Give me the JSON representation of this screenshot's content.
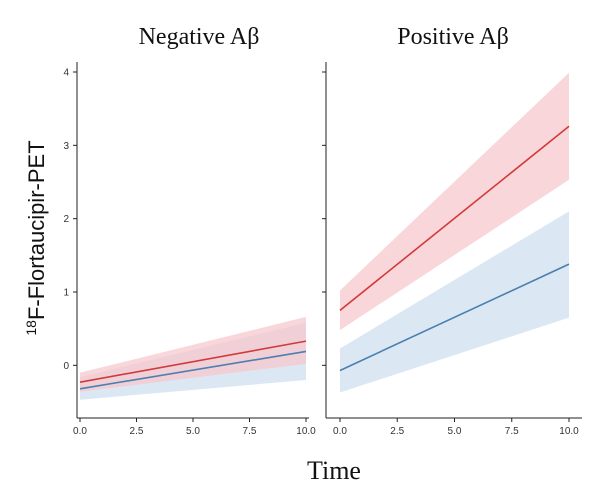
{
  "chart_data": {
    "type": "line",
    "ylabel_sup": "18",
    "ylabel_main": "F-Flortaucipir-PET",
    "xlabel": "Time",
    "ylim": [
      -0.5,
      4
    ],
    "xlim": [
      0,
      10
    ],
    "y_ticks": [
      "0",
      "1",
      "2",
      "3",
      "4"
    ],
    "y_tick_values": [
      0,
      1,
      2,
      3,
      4
    ],
    "x_ticks": [
      "0.0",
      "2.5",
      "5.0",
      "7.5",
      "10.0"
    ],
    "x_tick_values": [
      0,
      2.5,
      5,
      7.5,
      10
    ],
    "colors": {
      "red": "#d23a3a",
      "red_band": "#f7c8cc",
      "blue": "#4a7fb0",
      "blue_band": "#cfe0ef"
    },
    "panels": [
      {
        "title": "Negative Aβ",
        "series": [
          {
            "name": "red",
            "x": [
              0,
              10
            ],
            "y": [
              -0.23,
              0.33
            ],
            "lower": [
              -0.36,
              0.02
            ],
            "upper": [
              -0.1,
              0.66
            ]
          },
          {
            "name": "blue",
            "x": [
              0,
              10
            ],
            "y": [
              -0.32,
              0.19
            ],
            "lower": [
              -0.47,
              -0.2
            ],
            "upper": [
              -0.16,
              0.58
            ]
          }
        ]
      },
      {
        "title": "Positive Aβ",
        "series": [
          {
            "name": "red",
            "x": [
              0,
              10
            ],
            "y": [
              0.75,
              3.26
            ],
            "lower": [
              0.48,
              2.53
            ],
            "upper": [
              1.02,
              3.99
            ]
          },
          {
            "name": "blue",
            "x": [
              0,
              10
            ],
            "y": [
              -0.07,
              1.38
            ],
            "lower": [
              -0.37,
              0.65
            ],
            "upper": [
              0.23,
              2.1
            ]
          }
        ]
      }
    ]
  }
}
